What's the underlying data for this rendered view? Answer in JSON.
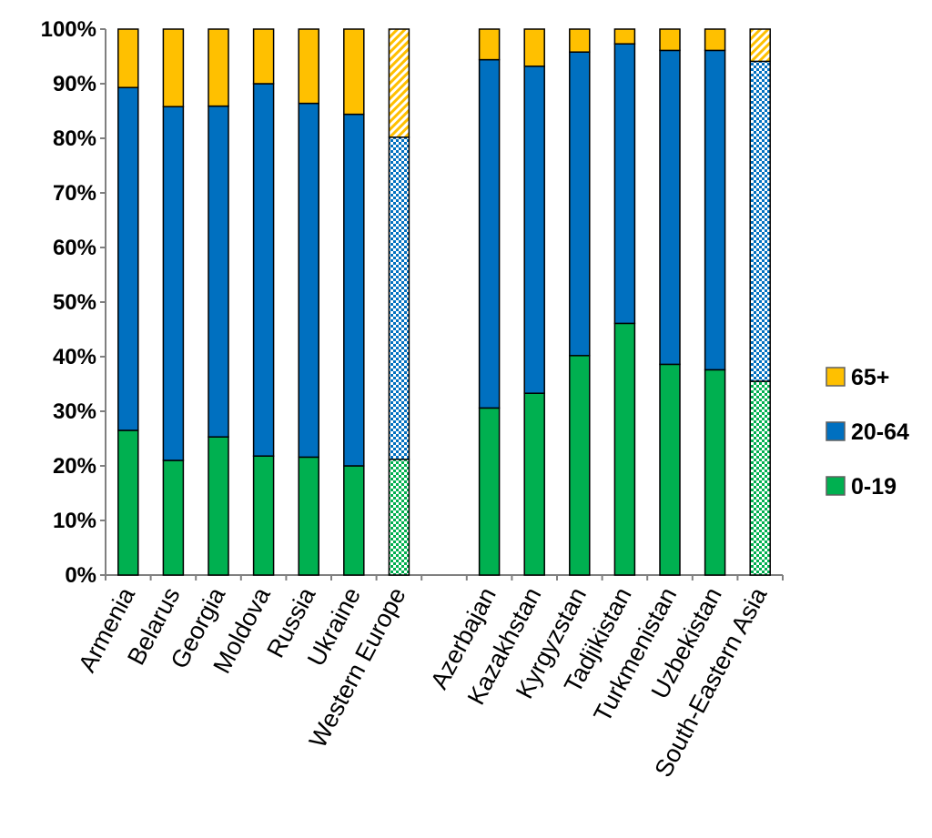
{
  "chart_data": {
    "type": "bar",
    "stacked": true,
    "percent": true,
    "title": "",
    "xlabel": "",
    "ylabel": "",
    "ylim": [
      0,
      100
    ],
    "yticks": [
      "0%",
      "10%",
      "20%",
      "30%",
      "40%",
      "50%",
      "60%",
      "70%",
      "80%",
      "90%",
      "100%"
    ],
    "grid": false,
    "legend_position": "right",
    "categories": [
      "Armenia",
      "Belarus",
      "Georgia",
      "Moldova",
      "Russia",
      "Ukraine",
      "Western Europe",
      "",
      "Azerbajan",
      "Kazakhstan",
      "Kyrgyzstan",
      "Tadjikistan",
      "Turkmenistan",
      "Uzbekistan",
      "South-Eastern Asia"
    ],
    "hatched_categories": [
      "Western Europe",
      "South-Eastern Asia"
    ],
    "series": [
      {
        "name": "0-19",
        "color": "#00B050",
        "values": [
          26.5,
          21.0,
          25.3,
          21.8,
          21.6,
          20.0,
          21.2,
          null,
          30.6,
          33.3,
          40.2,
          46.1,
          38.6,
          37.6,
          35.5
        ]
      },
      {
        "name": "20-64",
        "color": "#0070C0",
        "values": [
          62.8,
          64.8,
          60.6,
          68.2,
          64.8,
          64.4,
          59.0,
          null,
          63.8,
          59.9,
          55.6,
          51.2,
          57.5,
          58.5,
          58.6
        ]
      },
      {
        "name": "65+",
        "color": "#FFC000",
        "values": [
          10.7,
          14.2,
          14.1,
          10.0,
          13.6,
          15.6,
          19.8,
          null,
          5.6,
          6.8,
          4.2,
          2.7,
          3.9,
          3.9,
          5.9
        ]
      }
    ]
  }
}
